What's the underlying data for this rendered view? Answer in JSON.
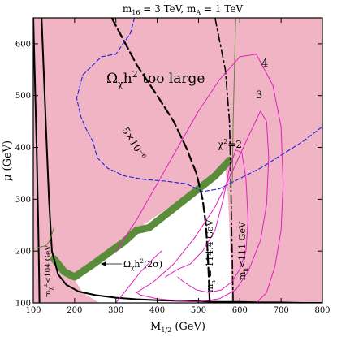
{
  "chart_data": {
    "type": "line",
    "title": "m₁₆ = 3 TeV,  m_A = 1 TeV",
    "title_parts": {
      "m16": "m",
      "m16_sub": "16",
      "m16_val": " = 3 TeV,  m",
      "mA_sub": "A",
      "mA_val": " = 1 TeV"
    },
    "xlabel": {
      "main": "M",
      "sub": "1/2",
      "unit": " (GeV)"
    },
    "ylabel": {
      "main": "μ",
      "unit": " (GeV)"
    },
    "xlim": [
      100,
      800
    ],
    "ylim": [
      100,
      650
    ],
    "xticks": [
      "100",
      "200",
      "300",
      "400",
      "500",
      "600",
      "700",
      "800"
    ],
    "yticks": [
      "100",
      "200",
      "300",
      "400",
      "500",
      "600"
    ],
    "xtick_values": [
      100,
      200,
      300,
      400,
      500,
      600,
      700,
      800
    ],
    "ytick_values": [
      100,
      200,
      300,
      400,
      500,
      600
    ],
    "grid": false,
    "colors": {
      "excluded": "#f0b4c4",
      "allowed": "#ffffff",
      "band": "#5a8c3a",
      "chi2": "#e020c0",
      "dm_dashed": "#2020e0",
      "olive": "#6b7b3a",
      "black": "#000000"
    },
    "regions": {
      "allowed_region": {
        "x": [
          195,
          250,
          300,
          340,
          380,
          430,
          480,
          525,
          565,
          572,
          575,
          578,
          580,
          560,
          530,
          500,
          470,
          420,
          380,
          340,
          300,
          260,
          220,
          195
        ],
        "y": [
          150,
          185,
          215,
          235,
          258,
          285,
          310,
          335,
          365,
          300,
          240,
          170,
          100,
          100,
          100,
          100,
          100,
          100,
          100,
          100,
          100,
          100,
          120,
          150
        ]
      }
    },
    "series": [
      {
        "id": "relic-band",
        "style": "band",
        "x": [
          150,
          175,
          200,
          240,
          280,
          320,
          350,
          380,
          420,
          460,
          500,
          540,
          575
        ],
        "y": [
          185,
          160,
          150,
          172,
          195,
          218,
          240,
          245,
          270,
          295,
          320,
          345,
          375
        ]
      },
      {
        "id": "chargino-bound",
        "style": "black-solid",
        "x": [
          120,
          130,
          138,
          145,
          160,
          180,
          210,
          250,
          300,
          350,
          400,
          450,
          500,
          550,
          600,
          650,
          700,
          750,
          800
        ],
        "y": [
          650,
          450,
          300,
          200,
          155,
          135,
          122,
          115,
          110,
          107,
          105,
          104,
          103,
          102,
          102,
          101,
          101,
          100,
          100
        ]
      },
      {
        "id": "chargino-bound-left",
        "style": "black-solid",
        "x": [
          100,
          108,
          112,
          114,
          115
        ],
        "y": [
          650,
          400,
          250,
          160,
          100
        ]
      },
      {
        "id": "higgs-114",
        "style": "black-longdash",
        "x": [
          290,
          350,
          400,
          440,
          470,
          495,
          510,
          518,
          522,
          525,
          527
        ],
        "y": [
          650,
          560,
          500,
          450,
          400,
          350,
          300,
          250,
          200,
          150,
          100
        ]
      },
      {
        "id": "higgs-111",
        "style": "black-dashdot",
        "x": [
          540,
          565,
          575,
          578,
          580,
          582,
          584
        ],
        "y": [
          650,
          550,
          450,
          350,
          250,
          180,
          100
        ]
      },
      {
        "id": "dm-contour",
        "style": "blue-dashed",
        "x": [
          345,
          335,
          300,
          265,
          220,
          205,
          215,
          225,
          245,
          255,
          280,
          320,
          370,
          420,
          470,
          510,
          550,
          600,
          650,
          700,
          750,
          800
        ],
        "y": [
          650,
          620,
          580,
          575,
          540,
          495,
          460,
          440,
          410,
          380,
          360,
          345,
          338,
          335,
          330,
          315,
          320,
          340,
          360,
          385,
          410,
          440
        ]
      },
      {
        "id": "olive-line",
        "style": "olive",
        "x": [
          100,
          130,
          140,
          150
        ],
        "y": [
          205,
          210,
          220,
          245
        ]
      },
      {
        "id": "olive-line-right",
        "style": "olive",
        "x": [
          590,
          587,
          584,
          582
        ],
        "y": [
          650,
          550,
          450,
          330
        ]
      },
      {
        "id": "chi2-2",
        "style": "magenta",
        "x": [
          420,
          450,
          480,
          510,
          540,
          560,
          575,
          590,
          605,
          615,
          620,
          615,
          600,
          580,
          555,
          525,
          495,
          465,
          450
        ],
        "y": [
          150,
          165,
          175,
          200,
          240,
          300,
          360,
          395,
          390,
          340,
          260,
          200,
          165,
          140,
          125,
          120,
          125,
          140,
          150
        ]
      },
      {
        "id": "chi2-3",
        "style": "magenta",
        "x": [
          350,
          390,
          440,
          490,
          540,
          580,
          620,
          650,
          665,
          670,
          665,
          650,
          620,
          590,
          550,
          500,
          450,
          400,
          360,
          350
        ],
        "y": [
          120,
          140,
          175,
          225,
          285,
          350,
          420,
          470,
          450,
          380,
          290,
          220,
          160,
          125,
          108,
          102,
          104,
          108,
          115,
          120
        ]
      },
      {
        "id": "chi2-4",
        "style": "magenta",
        "x": [
          300,
          350,
          400,
          450,
          500,
          550,
          600,
          640,
          680,
          700,
          705,
          700,
          685,
          665,
          640,
          610
        ],
        "y": [
          200,
          260,
          330,
          400,
          470,
          530,
          575,
          580,
          520,
          440,
          330,
          240,
          170,
          120,
          100,
          100
        ]
      },
      {
        "id": "chi2-4-left",
        "style": "magenta",
        "x": [
          300,
          330,
          360,
          390,
          410
        ],
        "y": [
          100,
          130,
          160,
          185,
          200
        ]
      }
    ],
    "annotations": {
      "omega_too_large": {
        "text": "Ω",
        "sub": "χ",
        "rest": "h",
        "sup": "2",
        "tail": " too large"
      },
      "dm_value": "5×10⁻⁶",
      "higgs_114_label": {
        "text": "m",
        "sub": "h",
        "rest": " = 114.4 GeV"
      },
      "higgs_111_label": {
        "text": "m",
        "sub": "h",
        "rest": "<111 GeV"
      },
      "chargino_label": {
        "text": "m",
        "sub": "χ",
        "sub2": "±",
        "rest": "<104 GeV"
      },
      "band_label": {
        "text": "Ω",
        "sub": "χ",
        "rest": "h",
        "sup": "2",
        "tail": "(2σ)"
      },
      "chi2_label": {
        "text": "χ",
        "sup": "2",
        "tail": "=2"
      },
      "chi2_3": "3",
      "chi2_4": "4"
    }
  }
}
